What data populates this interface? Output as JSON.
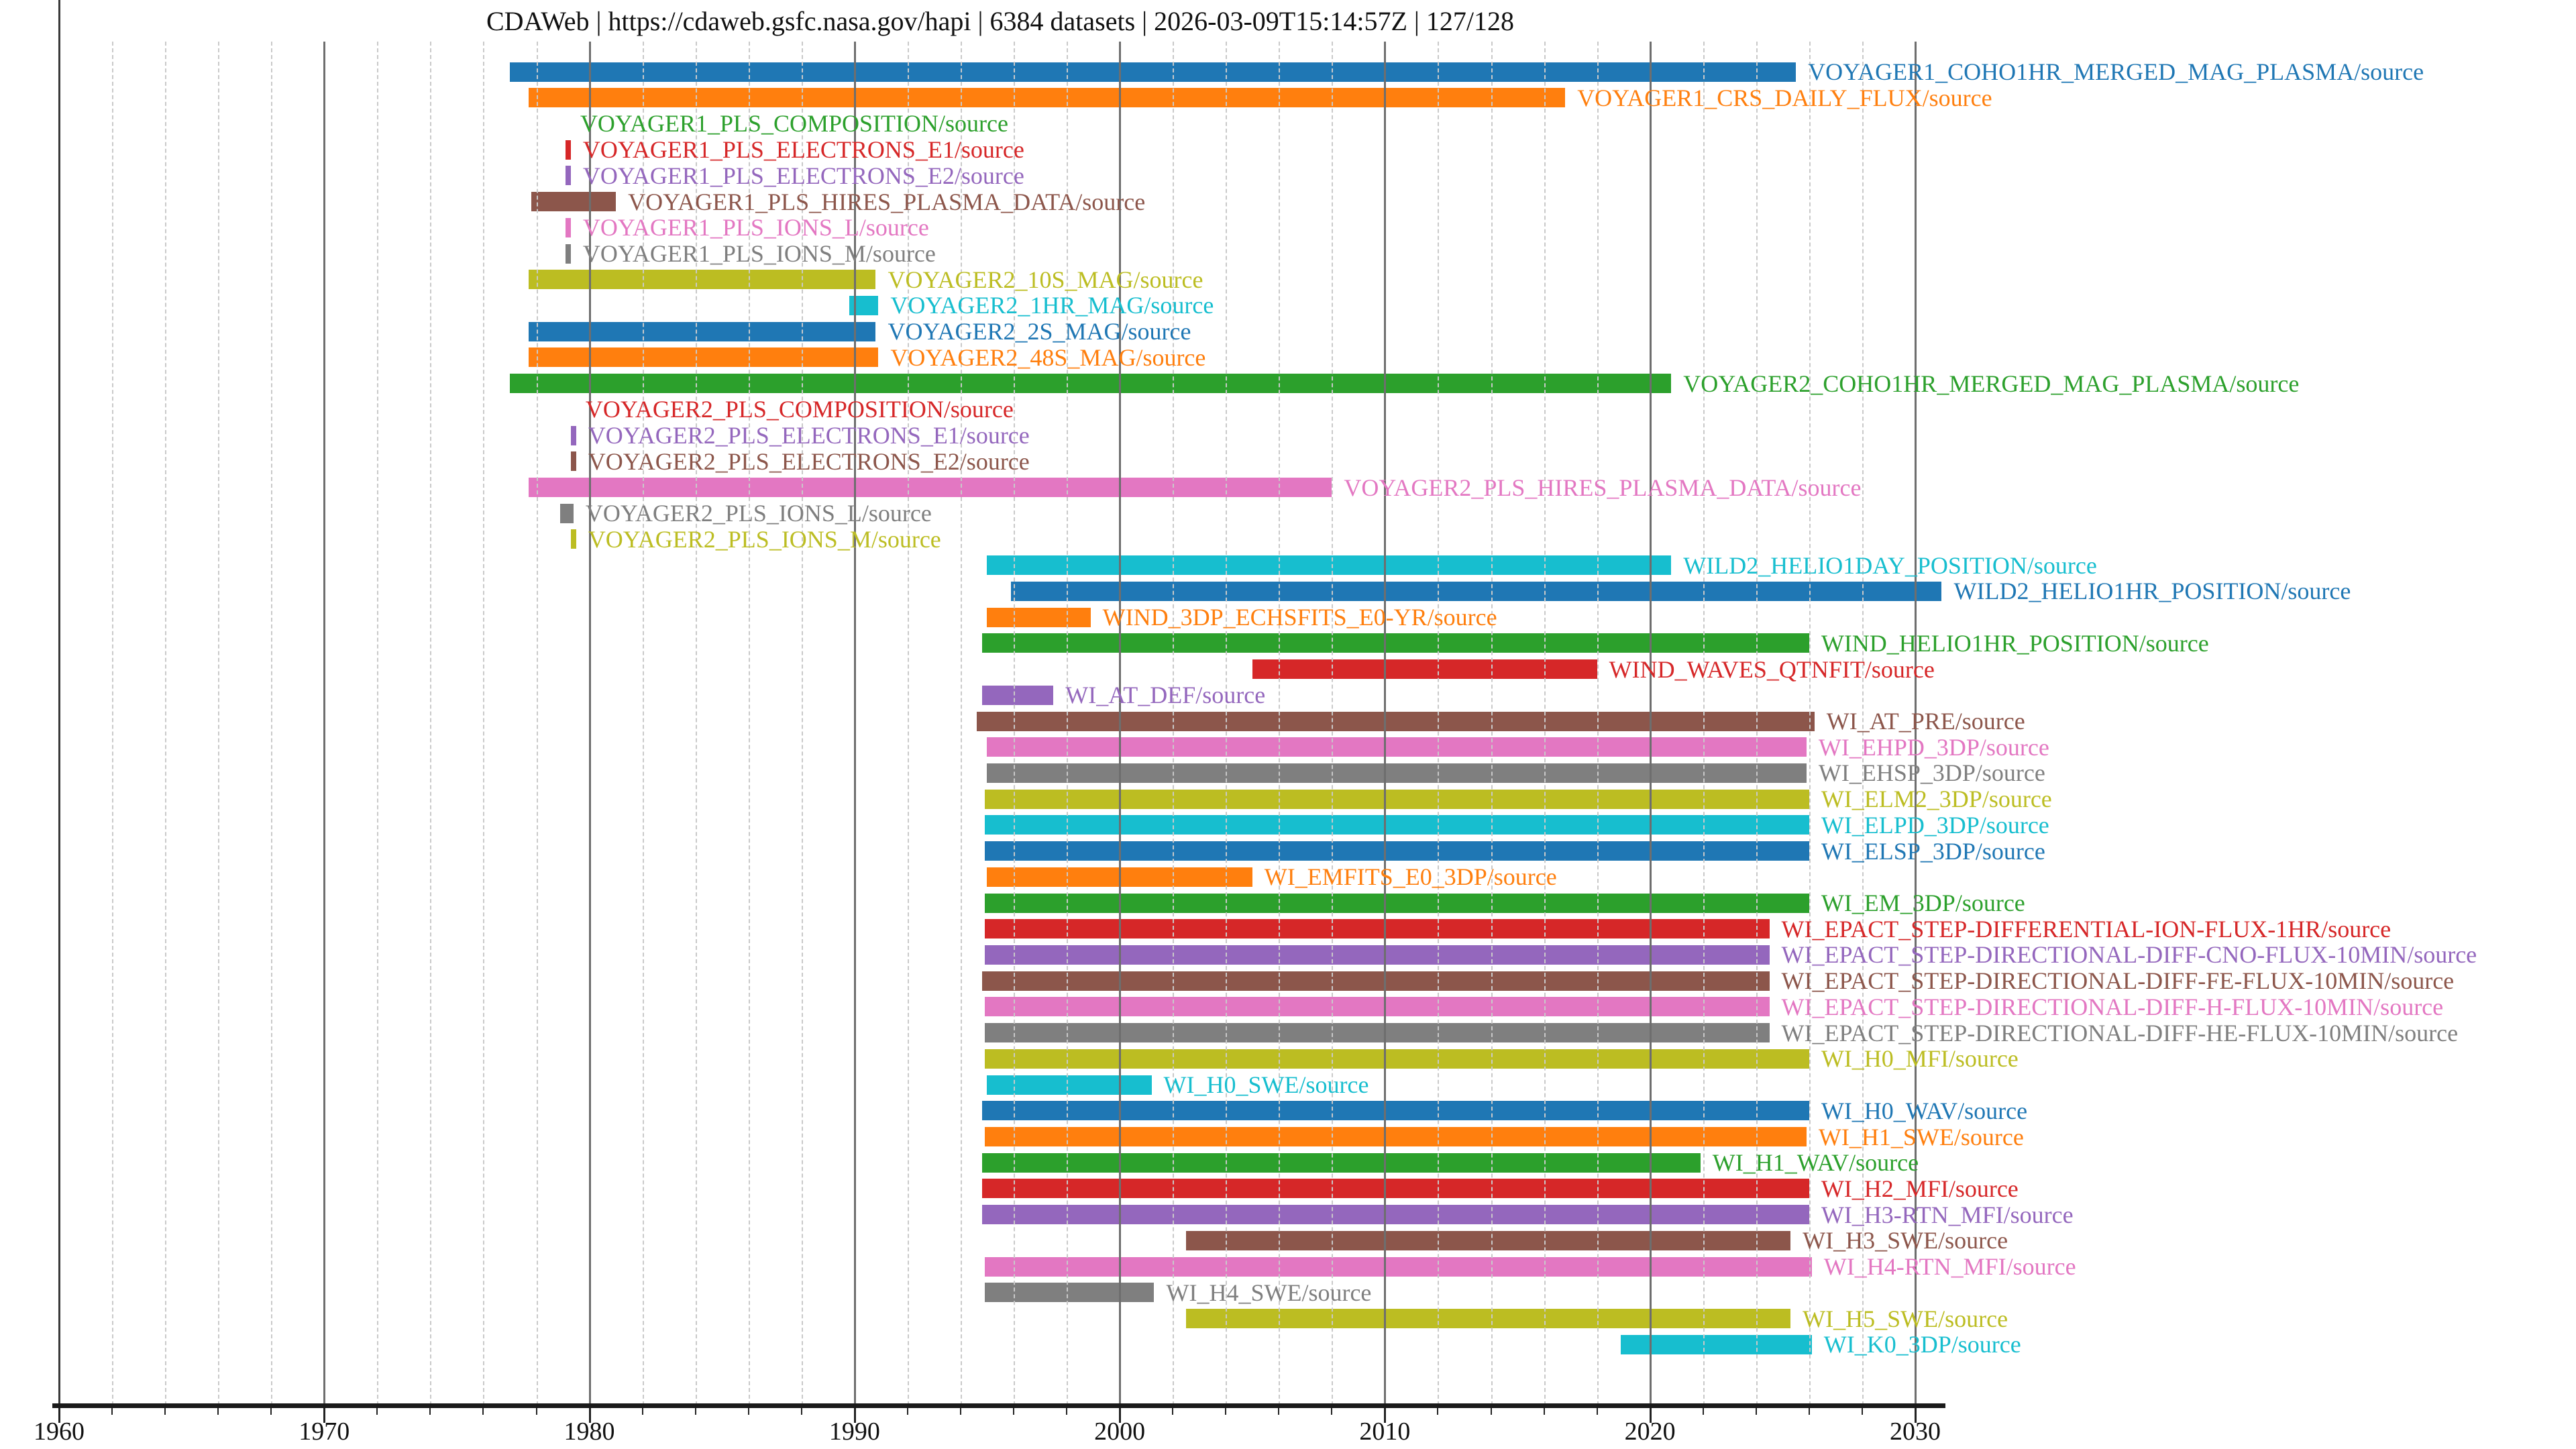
{
  "chart_data": {
    "type": "bar",
    "variant": "horizontal-interval-timeline",
    "title": "CDAWeb | https://cdaweb.gsfc.nasa.gov/hapi | 6384 datasets | 2026-03-09T15:14:57Z | 127/128",
    "xlabel": "",
    "ylabel": "",
    "x_axis": {
      "range": [
        1959.7,
        2031.3
      ],
      "major_ticks": [
        1960,
        1970,
        1980,
        1990,
        2000,
        2010,
        2020,
        2030
      ],
      "major_tick_labels": [
        "1960",
        "1970",
        "1980",
        "1990",
        "2000",
        "2010",
        "2020",
        "2030"
      ],
      "minor_tick_step_years": 2,
      "grid_major_style": "solid gray",
      "grid_minor_style": "dashed light-gray"
    },
    "palette": {
      "blue": "#1f77b4",
      "orange": "#ff7f0e",
      "green": "#2ca02c",
      "red": "#d62728",
      "purple": "#9467bd",
      "brown": "#8c564b",
      "pink": "#e377c2",
      "gray": "#7f7f7f",
      "olive": "#bcbd22",
      "cyan": "#17becf"
    },
    "label_placement": "right-of-bar-end, colored same as bar",
    "series": [
      {
        "label": "VOYAGER1_COHO1HR_MERGED_MAG_PLASMA/source",
        "color": "#1f77b4",
        "start": 1977.0,
        "end": 2025.5
      },
      {
        "label": "VOYAGER1_CRS_DAILY_FLUX/source",
        "color": "#ff7f0e",
        "start": 1977.7,
        "end": 2016.8
      },
      {
        "label": "VOYAGER1_PLS_COMPOSITION/source",
        "color": "#2ca02c",
        "start": 1979.2,
        "end": 1979.2
      },
      {
        "label": "VOYAGER1_PLS_ELECTRONS_E1/source",
        "color": "#d62728",
        "start": 1979.1,
        "end": 1979.3
      },
      {
        "label": "VOYAGER1_PLS_ELECTRONS_E2/source",
        "color": "#9467bd",
        "start": 1979.1,
        "end": 1979.3
      },
      {
        "label": "VOYAGER1_PLS_HIRES_PLASMA_DATA/source",
        "color": "#8c564b",
        "start": 1977.8,
        "end": 1981.0
      },
      {
        "label": "VOYAGER1_PLS_IONS_L/source",
        "color": "#e377c2",
        "start": 1979.1,
        "end": 1979.3
      },
      {
        "label": "VOYAGER1_PLS_IONS_M/source",
        "color": "#7f7f7f",
        "start": 1979.1,
        "end": 1979.3
      },
      {
        "label": "VOYAGER2_10S_MAG/source",
        "color": "#bcbd22",
        "start": 1977.7,
        "end": 1990.8
      },
      {
        "label": "VOYAGER2_1HR_MAG/source",
        "color": "#17becf",
        "start": 1989.8,
        "end": 1990.9
      },
      {
        "label": "VOYAGER2_2S_MAG/source",
        "color": "#1f77b4",
        "start": 1977.7,
        "end": 1990.8
      },
      {
        "label": "VOYAGER2_48S_MAG/source",
        "color": "#ff7f0e",
        "start": 1977.7,
        "end": 1990.9
      },
      {
        "label": "VOYAGER2_COHO1HR_MERGED_MAG_PLASMA/source",
        "color": "#2ca02c",
        "start": 1977.0,
        "end": 2020.8
      },
      {
        "label": "VOYAGER2_PLS_COMPOSITION/source",
        "color": "#d62728",
        "start": 1979.4,
        "end": 1979.4
      },
      {
        "label": "VOYAGER2_PLS_ELECTRONS_E1/source",
        "color": "#9467bd",
        "start": 1979.3,
        "end": 1979.5
      },
      {
        "label": "VOYAGER2_PLS_ELECTRONS_E2/source",
        "color": "#8c564b",
        "start": 1979.3,
        "end": 1979.5
      },
      {
        "label": "VOYAGER2_PLS_HIRES_PLASMA_DATA/source",
        "color": "#e377c2",
        "start": 1977.7,
        "end": 2008.0
      },
      {
        "label": "VOYAGER2_PLS_IONS_L/source",
        "color": "#7f7f7f",
        "start": 1978.9,
        "end": 1979.4
      },
      {
        "label": "VOYAGER2_PLS_IONS_M/source",
        "color": "#bcbd22",
        "start": 1979.3,
        "end": 1979.5
      },
      {
        "label": "WILD2_HELIO1DAY_POSITION/source",
        "color": "#17becf",
        "start": 1995.0,
        "end": 2020.8
      },
      {
        "label": "WILD2_HELIO1HR_POSITION/source",
        "color": "#1f77b4",
        "start": 1995.9,
        "end": 2031.0
      },
      {
        "label": "WIND_3DP_ECHSFITS_E0-YR/source",
        "color": "#ff7f0e",
        "start": 1995.0,
        "end": 1998.9
      },
      {
        "label": "WIND_HELIO1HR_POSITION/source",
        "color": "#2ca02c",
        "start": 1994.8,
        "end": 2026.0
      },
      {
        "label": "WIND_WAVES_QTNFIT/source",
        "color": "#d62728",
        "start": 2005.0,
        "end": 2018.0
      },
      {
        "label": "WI_AT_DEF/source",
        "color": "#9467bd",
        "start": 1994.8,
        "end": 1997.5
      },
      {
        "label": "WI_AT_PRE/source",
        "color": "#8c564b",
        "start": 1994.6,
        "end": 2026.2
      },
      {
        "label": "WI_EHPD_3DP/source",
        "color": "#e377c2",
        "start": 1995.0,
        "end": 2025.9
      },
      {
        "label": "WI_EHSP_3DP/source",
        "color": "#7f7f7f",
        "start": 1995.0,
        "end": 2025.9
      },
      {
        "label": "WI_ELM2_3DP/source",
        "color": "#bcbd22",
        "start": 1994.9,
        "end": 2026.0
      },
      {
        "label": "WI_ELPD_3DP/source",
        "color": "#17becf",
        "start": 1994.9,
        "end": 2026.0
      },
      {
        "label": "WI_ELSP_3DP/source",
        "color": "#1f77b4",
        "start": 1994.9,
        "end": 2026.0
      },
      {
        "label": "WI_EMFITS_E0_3DP/source",
        "color": "#ff7f0e",
        "start": 1995.0,
        "end": 2005.0
      },
      {
        "label": "WI_EM_3DP/source",
        "color": "#2ca02c",
        "start": 1994.9,
        "end": 2026.0
      },
      {
        "label": "WI_EPACT_STEP-DIFFERENTIAL-ION-FLUX-1HR/source",
        "color": "#d62728",
        "start": 1994.9,
        "end": 2024.5
      },
      {
        "label": "WI_EPACT_STEP-DIRECTIONAL-DIFF-CNO-FLUX-10MIN/source",
        "color": "#9467bd",
        "start": 1994.9,
        "end": 2024.5
      },
      {
        "label": "WI_EPACT_STEP-DIRECTIONAL-DIFF-FE-FLUX-10MIN/source",
        "color": "#8c564b",
        "start": 1994.8,
        "end": 2024.5
      },
      {
        "label": "WI_EPACT_STEP-DIRECTIONAL-DIFF-H-FLUX-10MIN/source",
        "color": "#e377c2",
        "start": 1994.9,
        "end": 2024.5
      },
      {
        "label": "WI_EPACT_STEP-DIRECTIONAL-DIFF-HE-FLUX-10MIN/source",
        "color": "#7f7f7f",
        "start": 1994.9,
        "end": 2024.5
      },
      {
        "label": "WI_H0_MFI/source",
        "color": "#bcbd22",
        "start": 1994.9,
        "end": 2026.0
      },
      {
        "label": "WI_H0_SWE/source",
        "color": "#17becf",
        "start": 1995.0,
        "end": 2001.2
      },
      {
        "label": "WI_H0_WAV/source",
        "color": "#1f77b4",
        "start": 1994.8,
        "end": 2026.0
      },
      {
        "label": "WI_H1_SWE/source",
        "color": "#ff7f0e",
        "start": 1994.9,
        "end": 2025.9
      },
      {
        "label": "WI_H1_WAV/source",
        "color": "#2ca02c",
        "start": 1994.8,
        "end": 2021.9
      },
      {
        "label": "WI_H2_MFI/source",
        "color": "#d62728",
        "start": 1994.8,
        "end": 2026.0
      },
      {
        "label": "WI_H3-RTN_MFI/source",
        "color": "#9467bd",
        "start": 1994.8,
        "end": 2026.0
      },
      {
        "label": "WI_H3_SWE/source",
        "color": "#8c564b",
        "start": 2002.5,
        "end": 2025.3
      },
      {
        "label": "WI_H4-RTN_MFI/source",
        "color": "#e377c2",
        "start": 1994.9,
        "end": 2026.1
      },
      {
        "label": "WI_H4_SWE/source",
        "color": "#7f7f7f",
        "start": 1994.9,
        "end": 2001.3
      },
      {
        "label": "WI_H5_SWE/source",
        "color": "#bcbd22",
        "start": 2002.5,
        "end": 2025.3
      },
      {
        "label": "WI_K0_3DP/source",
        "color": "#17becf",
        "start": 2018.9,
        "end": 2026.1
      }
    ]
  }
}
